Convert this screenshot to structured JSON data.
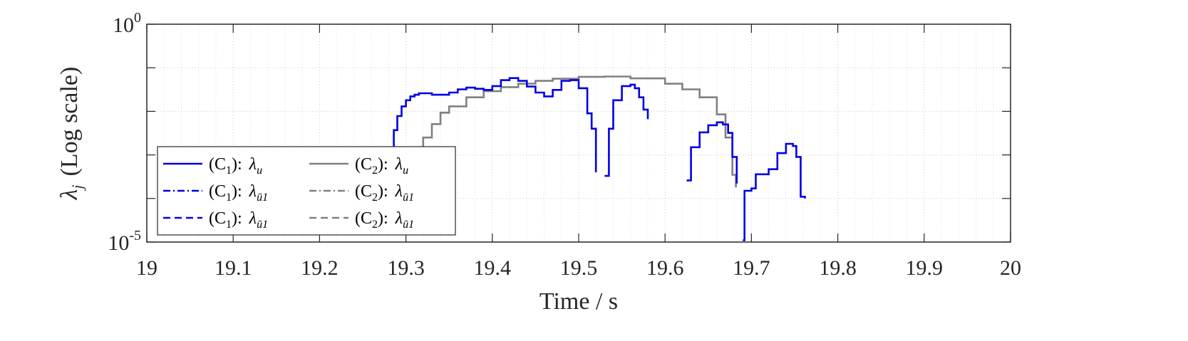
{
  "chart_data": {
    "type": "line",
    "xlabel": "Time / s",
    "ylabel": "λ_j (Log scale)",
    "ylabel_parts": {
      "symbol": "λ",
      "sub": "j",
      "text": "(Log scale)"
    },
    "y_scale": "log",
    "xlim": [
      19,
      20
    ],
    "ylim": [
      1e-05,
      1
    ],
    "grid": true,
    "x_ticks": [
      19,
      19.1,
      19.2,
      19.3,
      19.4,
      19.5,
      19.6,
      19.7,
      19.8,
      19.9,
      20
    ],
    "x_tick_labels": [
      "19",
      "19.1",
      "19.2",
      "19.3",
      "19.4",
      "19.5",
      "19.6",
      "19.7",
      "19.8",
      "19.9",
      "20"
    ],
    "y_ticks": [
      {
        "base": "10",
        "exp": "0",
        "value": 1
      },
      {
        "base": "10",
        "exp": "-5",
        "value": 1e-05
      }
    ],
    "legend_position": "lower-left",
    "series": [
      {
        "name": "(C1): λu",
        "color": "#0000e6",
        "style": "solid",
        "segments": [
          [
            [
              19.278,
              0.00013
            ],
            [
              19.282,
              0.0011
            ],
            [
              19.286,
              0.0037
            ],
            [
              19.29,
              0.0078
            ],
            [
              19.295,
              0.013
            ],
            [
              19.3,
              0.018
            ],
            [
              19.305,
              0.022
            ],
            [
              19.31,
              0.024
            ],
            [
              19.315,
              0.026
            ],
            [
              19.32,
              0.026
            ],
            [
              19.33,
              0.024
            ],
            [
              19.34,
              0.024
            ],
            [
              19.35,
              0.027
            ],
            [
              19.36,
              0.032
            ],
            [
              19.37,
              0.035
            ],
            [
              19.38,
              0.033
            ],
            [
              19.39,
              0.031
            ],
            [
              19.4,
              0.038
            ],
            [
              19.41,
              0.052
            ],
            [
              19.42,
              0.058
            ],
            [
              19.43,
              0.05
            ],
            [
              19.44,
              0.037
            ],
            [
              19.45,
              0.027
            ],
            [
              19.46,
              0.022
            ],
            [
              19.47,
              0.031
            ],
            [
              19.48,
              0.05
            ],
            [
              19.49,
              0.052
            ],
            [
              19.5,
              0.034
            ],
            [
              19.51,
              0.009
            ],
            [
              19.515,
              0.004
            ],
            [
              19.52,
              0.0004
            ]
          ],
          [
            [
              19.53,
              0.00033
            ],
            [
              19.535,
              0.004
            ],
            [
              19.54,
              0.018
            ],
            [
              19.55,
              0.038
            ],
            [
              19.56,
              0.041
            ],
            [
              19.565,
              0.034
            ],
            [
              19.57,
              0.021
            ],
            [
              19.575,
              0.011
            ],
            [
              19.58,
              0.0066
            ]
          ],
          [
            [
              19.625,
              0.00026
            ],
            [
              19.63,
              0.0015
            ],
            [
              19.64,
              0.0033
            ],
            [
              19.65,
              0.0048
            ],
            [
              19.66,
              0.0056
            ],
            [
              19.667,
              0.005
            ],
            [
              19.673,
              0.0032
            ],
            [
              19.678,
              0.0009
            ],
            [
              19.683,
              0.00022
            ]
          ],
          [
            [
              19.69,
              1.1e-05
            ],
            [
              19.692,
              0.00015
            ],
            [
              19.7,
              0.00017
            ],
            [
              19.705,
              0.00036
            ],
            [
              19.72,
              0.00047
            ],
            [
              19.73,
              0.0011
            ],
            [
              19.74,
              0.0018
            ],
            [
              19.748,
              0.0016
            ],
            [
              19.752,
              0.0009
            ],
            [
              19.757,
              0.00011
            ],
            [
              19.762,
              0.0001
            ]
          ]
        ]
      },
      {
        "name": "(C1): λū1",
        "color": "#0000e6",
        "style": "dashdot",
        "segments": []
      },
      {
        "name": "(C1): λū1",
        "color": "#0000e6",
        "style": "dashed",
        "segments": []
      },
      {
        "name": "(C2): λu",
        "color": "#808080",
        "style": "solid",
        "segments": [
          [
            [
              19.3,
              0.00013
            ],
            [
              19.305,
              0.0003
            ],
            [
              19.31,
              0.0009
            ],
            [
              19.32,
              0.0025
            ],
            [
              19.33,
              0.0051
            ],
            [
              19.34,
              0.0093
            ],
            [
              19.35,
              0.013
            ],
            [
              19.37,
              0.021
            ],
            [
              19.39,
              0.029
            ],
            [
              19.41,
              0.036
            ],
            [
              19.43,
              0.043
            ],
            [
              19.45,
              0.05
            ],
            [
              19.47,
              0.056
            ],
            [
              19.5,
              0.062
            ],
            [
              19.53,
              0.063
            ],
            [
              19.56,
              0.057
            ],
            [
              19.6,
              0.043
            ],
            [
              19.62,
              0.032
            ],
            [
              19.64,
              0.021
            ],
            [
              19.66,
              0.0085
            ],
            [
              19.67,
              0.0025
            ],
            [
              19.678,
              0.00035
            ],
            [
              19.682,
              0.00018
            ]
          ]
        ]
      },
      {
        "name": "(C2): λū1",
        "color": "#808080",
        "style": "dashdot",
        "segments": []
      },
      {
        "name": "(C2): λū1",
        "color": "#808080",
        "style": "dashed",
        "segments": []
      }
    ],
    "legend": [
      {
        "prefix": "(C",
        "idx": "1",
        "suffix": "):",
        "sym": "λ",
        "sub": "u",
        "color": "#0000e6",
        "style": "solid"
      },
      {
        "prefix": "(C",
        "idx": "1",
        "suffix": "):",
        "sym": "λ",
        "sub": "ū1",
        "color": "#0000e6",
        "style": "dashdot"
      },
      {
        "prefix": "(C",
        "idx": "1",
        "suffix": "):",
        "sym": "λ",
        "sub": "ū1",
        "color": "#0000e6",
        "style": "dashed"
      },
      {
        "prefix": "(C",
        "idx": "2",
        "suffix": "):",
        "sym": "λ",
        "sub": "u",
        "color": "#808080",
        "style": "solid"
      },
      {
        "prefix": "(C",
        "idx": "2",
        "suffix": "):",
        "sym": "λ",
        "sub": "ū1",
        "color": "#808080",
        "style": "dashdot"
      },
      {
        "prefix": "(C",
        "idx": "2",
        "suffix": "):",
        "sym": "λ",
        "sub": "ū1",
        "color": "#808080",
        "style": "dashed"
      }
    ]
  }
}
